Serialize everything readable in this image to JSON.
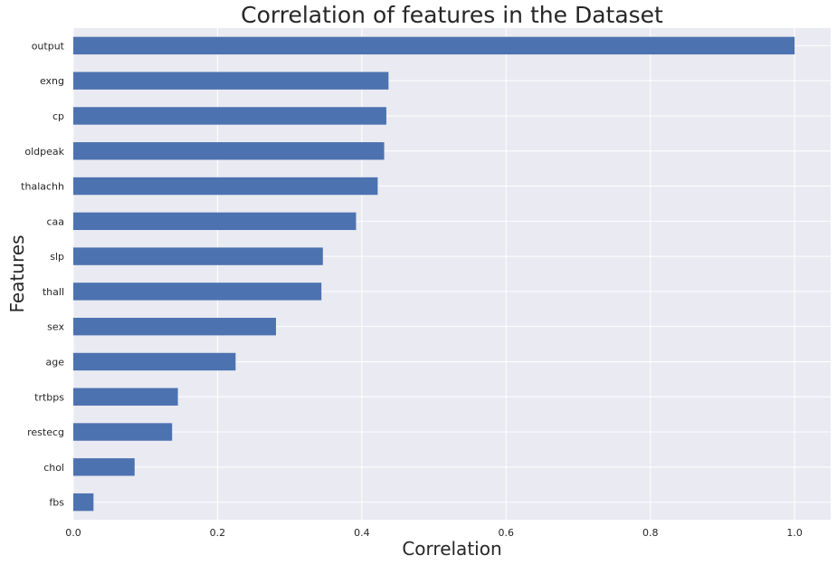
{
  "chart_data": {
    "type": "bar",
    "orientation": "horizontal",
    "title": "Correlation of features in the Dataset",
    "xlabel": "Correlation",
    "ylabel": "Features",
    "categories": [
      "output",
      "exng",
      "cp",
      "oldpeak",
      "thalachh",
      "caa",
      "slp",
      "thall",
      "sex",
      "age",
      "trtbps",
      "restecg",
      "chol",
      "fbs"
    ],
    "values": [
      1.0,
      0.437,
      0.434,
      0.431,
      0.422,
      0.392,
      0.346,
      0.344,
      0.281,
      0.225,
      0.145,
      0.137,
      0.085,
      0.028
    ],
    "xlim": [
      0,
      1.05
    ],
    "xticks": [
      0.0,
      0.2,
      0.4,
      0.6,
      0.8,
      1.0
    ],
    "xtick_labels": [
      "0.0",
      "0.2",
      "0.4",
      "0.6",
      "0.8",
      "1.0"
    ],
    "grid": true,
    "colors": {
      "bar": "#4c72b0",
      "background": "#eaeaf2",
      "grid": "#ffffff",
      "text": "#262626"
    }
  }
}
